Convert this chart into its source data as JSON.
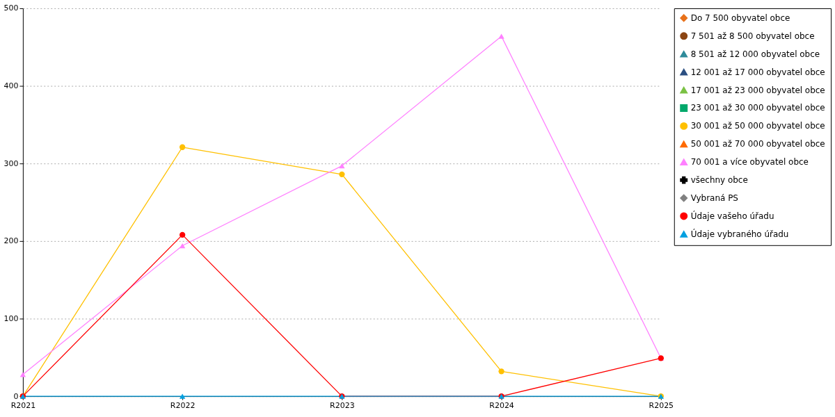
{
  "chart_data": {
    "type": "line",
    "categories": [
      "R2021",
      "R2022",
      "R2023",
      "R2024",
      "R2025"
    ],
    "ylim": [
      0,
      500
    ],
    "yticks": [
      0,
      100,
      200,
      300,
      400,
      500
    ],
    "grid": "y",
    "legend": "right",
    "series": [
      {
        "name": "Do 7 500 obyvatel obce",
        "color": "#e8711a",
        "marker": "diamond",
        "values": [
          null,
          null,
          null,
          null,
          null
        ]
      },
      {
        "name": "7 501 až 8 500 obyvatel obce",
        "color": "#8b4513",
        "marker": "circle",
        "values": [
          null,
          null,
          null,
          null,
          null
        ]
      },
      {
        "name": "8 501 až 12 000 obyvatel obce",
        "color": "#2e8b9a",
        "marker": "triangle",
        "values": [
          null,
          null,
          null,
          null,
          null
        ]
      },
      {
        "name": "12 001 až 17 000 obyvatel obce",
        "color": "#2b4f81",
        "marker": "triangle",
        "values": [
          null,
          null,
          null,
          null,
          null
        ]
      },
      {
        "name": "17 001 až 23 000 obyvatel obce",
        "color": "#7ac143",
        "marker": "triangle",
        "values": [
          null,
          null,
          null,
          null,
          null
        ]
      },
      {
        "name": "23 001 až 30 000 obyvatel obce",
        "color": "#00a86b",
        "marker": "square",
        "values": [
          null,
          null,
          null,
          null,
          null
        ]
      },
      {
        "name": "30 001 až 50 000 obyvatel obce",
        "color": "#ffc000",
        "marker": "circle",
        "values": [
          0,
          321,
          286,
          32,
          0
        ]
      },
      {
        "name": "50 001 až 70 000 obyvatel obce",
        "color": "#ff6a00",
        "marker": "triangle",
        "values": [
          null,
          null,
          null,
          null,
          null
        ]
      },
      {
        "name": "70 001 a více obyvatel obce",
        "color": "#ff80ff",
        "marker": "triangle",
        "values": [
          28,
          194,
          297,
          464,
          49
        ]
      },
      {
        "name": "všechny obce",
        "color": "#000000",
        "marker": "cross",
        "values": [
          null,
          null,
          null,
          null,
          null
        ]
      },
      {
        "name": "Vybraná PS",
        "color": "#808080",
        "marker": "diamond",
        "values": [
          null,
          null,
          null,
          null,
          null
        ]
      },
      {
        "name": "Údaje vašeho úřadu",
        "color": "#ff0000",
        "marker": "circle",
        "values": [
          0,
          208,
          0,
          0,
          49
        ]
      },
      {
        "name": "Údaje vybraného úřadu",
        "color": "#00a0e0",
        "marker": "triangle",
        "values": [
          0,
          0,
          0,
          0,
          0
        ]
      }
    ]
  }
}
